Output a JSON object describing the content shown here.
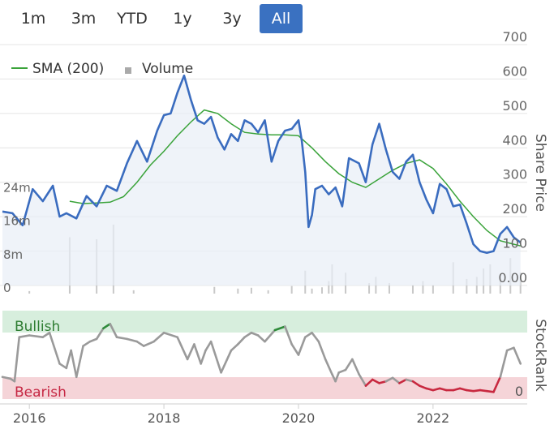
{
  "range_buttons": [
    {
      "label": "1m",
      "active": false
    },
    {
      "label": "3m",
      "active": false
    },
    {
      "label": "YTD",
      "active": false
    },
    {
      "label": "1y",
      "active": false
    },
    {
      "label": "3y",
      "active": false
    },
    {
      "label": "All",
      "active": true
    }
  ],
  "legend": {
    "sma_label": "SMA (200)",
    "volume_label": "Volume"
  },
  "colors": {
    "price_line": "#3a6cbf",
    "sma_line": "#3aa33a",
    "volume_bar": "#c8c8c8",
    "bullish_band": "#d7eedd",
    "bearish_band": "#f5d4d8",
    "bullish_text": "#2e7d32",
    "bearish_text": "#c62844",
    "rank_neutral": "#9a9a9a",
    "rank_bull": "#2e8b3a",
    "rank_bear": "#c8283f",
    "active_button": "#3a71c1"
  },
  "chart_data": [
    {
      "type": "line",
      "title": "",
      "ylabel": "Share Price",
      "ylim": [
        0,
        700
      ],
      "yticks": [
        "700",
        "600",
        "500",
        "400",
        "300",
        "200",
        "100",
        "0.00"
      ],
      "xlabel": "",
      "xlim": [
        2015.6,
        2023.4
      ],
      "xticks": [
        "2016",
        "2018",
        "2020",
        "2022"
      ],
      "series": [
        {
          "name": "Share Price",
          "x": [
            2015.6,
            2015.75,
            2015.9,
            2016.05,
            2016.2,
            2016.35,
            2016.45,
            2016.55,
            2016.7,
            2016.85,
            2017.0,
            2017.15,
            2017.3,
            2017.45,
            2017.6,
            2017.75,
            2017.9,
            2018.0,
            2018.1,
            2018.2,
            2018.3,
            2018.4,
            2018.5,
            2018.6,
            2018.7,
            2018.8,
            2018.9,
            2019.0,
            2019.1,
            2019.2,
            2019.3,
            2019.4,
            2019.5,
            2019.6,
            2019.7,
            2019.8,
            2019.9,
            2020.0,
            2020.05,
            2020.1,
            2020.15,
            2020.2,
            2020.25,
            2020.35,
            2020.45,
            2020.55,
            2020.65,
            2020.75,
            2020.9,
            2021.0,
            2021.1,
            2021.2,
            2021.3,
            2021.4,
            2021.5,
            2021.6,
            2021.7,
            2021.8,
            2021.9,
            2022.0,
            2022.1,
            2022.2,
            2022.3,
            2022.4,
            2022.5,
            2022.6,
            2022.7,
            2022.8,
            2022.9,
            2023.0,
            2023.1,
            2023.2,
            2023.3
          ],
          "values": [
            215,
            210,
            175,
            280,
            245,
            290,
            200,
            210,
            195,
            260,
            230,
            290,
            275,
            355,
            420,
            360,
            450,
            495,
            500,
            560,
            610,
            540,
            480,
            470,
            490,
            430,
            395,
            440,
            420,
            480,
            470,
            445,
            480,
            360,
            420,
            450,
            455,
            480,
            420,
            330,
            170,
            205,
            280,
            290,
            265,
            285,
            230,
            370,
            355,
            300,
            410,
            470,
            395,
            330,
            310,
            360,
            380,
            300,
            250,
            210,
            295,
            280,
            230,
            235,
            180,
            120,
            100,
            95,
            100,
            150,
            170,
            140,
            125
          ]
        },
        {
          "name": "SMA (200)",
          "x": [
            2016.6,
            2016.8,
            2017.0,
            2017.2,
            2017.4,
            2017.6,
            2017.8,
            2018.0,
            2018.2,
            2018.4,
            2018.6,
            2018.8,
            2019.0,
            2019.2,
            2019.4,
            2019.6,
            2019.8,
            2020.0,
            2020.2,
            2020.4,
            2020.6,
            2020.8,
            2021.0,
            2021.2,
            2021.4,
            2021.6,
            2021.8,
            2022.0,
            2022.2,
            2022.4,
            2022.6,
            2022.8,
            2023.0,
            2023.2,
            2023.3
          ],
          "values": [
            245,
            238,
            240,
            242,
            258,
            300,
            350,
            390,
            435,
            475,
            510,
            500,
            470,
            445,
            440,
            438,
            438,
            435,
            400,
            360,
            325,
            300,
            285,
            310,
            335,
            355,
            365,
            340,
            295,
            245,
            200,
            160,
            130,
            120,
            115
          ]
        }
      ]
    },
    {
      "type": "bar",
      "name": "Volume",
      "yticks": [
        "24m",
        "16m",
        "8m",
        "0"
      ],
      "ylim": [
        0,
        26
      ],
      "x": [
        2016.0,
        2016.6,
        2017.0,
        2017.25,
        2017.55,
        2018.75,
        2019.1,
        2019.3,
        2019.55,
        2019.9,
        2020.1,
        2020.2,
        2020.35,
        2020.45,
        2020.5,
        2020.7,
        2021.05,
        2021.15,
        2021.35,
        2021.7,
        2021.85,
        2022.0,
        2022.3,
        2022.5,
        2022.65,
        2022.75,
        2022.85,
        2023.0,
        2023.15,
        2023.3
      ],
      "values": [
        0.6,
        13.5,
        13,
        16.5,
        0.8,
        1.6,
        1.2,
        1.4,
        0.8,
        1.8,
        5.5,
        1.2,
        1.5,
        3,
        7,
        5,
        2.5,
        4,
        2.5,
        2,
        3,
        2,
        7.5,
        3.5,
        4,
        6,
        7,
        4.5,
        8.5,
        5
      ]
    },
    {
      "type": "line",
      "name": "StockRank",
      "ylabel": "StockRank",
      "ylim": [
        0,
        100
      ],
      "yticks": [
        "0"
      ],
      "bands": [
        {
          "label": "Bullish",
          "from": 80,
          "to": 100
        },
        {
          "label": "Bearish",
          "from": 0,
          "to": 20
        }
      ],
      "x": [
        2015.6,
        2015.72,
        2015.78,
        2015.85,
        2016.0,
        2016.2,
        2016.3,
        2016.45,
        2016.55,
        2016.62,
        2016.7,
        2016.8,
        2016.9,
        2017.0,
        2017.1,
        2017.2,
        2017.3,
        2017.45,
        2017.6,
        2017.7,
        2017.85,
        2018.0,
        2018.2,
        2018.35,
        2018.45,
        2018.55,
        2018.62,
        2018.7,
        2018.85,
        2019.0,
        2019.1,
        2019.2,
        2019.3,
        2019.4,
        2019.5,
        2019.65,
        2019.8,
        2019.9,
        2020.0,
        2020.1,
        2020.2,
        2020.3,
        2020.4,
        2020.5,
        2020.55,
        2020.6,
        2020.7,
        2020.8,
        2020.9,
        2021.0,
        2021.1,
        2021.2,
        2021.3,
        2021.4,
        2021.5,
        2021.6,
        2021.7,
        2021.8,
        2021.9,
        2022.0,
        2022.1,
        2022.2,
        2022.3,
        2022.4,
        2022.5,
        2022.6,
        2022.7,
        2022.8,
        2022.9,
        2023.0,
        2023.1,
        2023.2,
        2023.3
      ],
      "values": [
        25,
        23,
        20,
        70,
        72,
        70,
        75,
        40,
        35,
        55,
        25,
        60,
        65,
        68,
        80,
        85,
        70,
        68,
        65,
        60,
        65,
        75,
        70,
        45,
        62,
        40,
        55,
        65,
        30,
        55,
        62,
        70,
        75,
        72,
        65,
        78,
        82,
        62,
        50,
        70,
        75,
        65,
        45,
        28,
        20,
        30,
        33,
        45,
        28,
        15,
        22,
        18,
        20,
        24,
        18,
        22,
        20,
        15,
        12,
        10,
        12,
        10,
        10,
        12,
        10,
        9,
        10,
        9,
        8,
        25,
        55,
        58,
        40
      ]
    }
  ]
}
